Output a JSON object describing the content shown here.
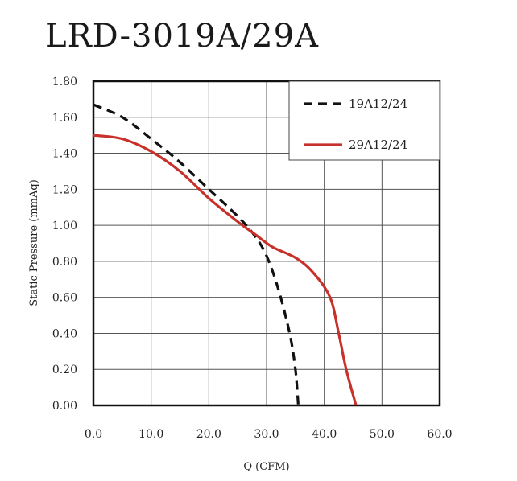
{
  "chart_data": {
    "type": "line",
    "title": "LRD-3019A/29A",
    "xlabel": "Q (CFM)",
    "ylabel": "Static Pressure (mmAq)",
    "xlim": [
      0,
      60
    ],
    "ylim": [
      0,
      1.8
    ],
    "x_ticks": [
      "0.0",
      "10.0",
      "20.0",
      "30.0",
      "40.0",
      "50.0",
      "60.0"
    ],
    "y_ticks": [
      "0.00",
      "0.20",
      "0.40",
      "0.60",
      "0.80",
      "1.00",
      "1.20",
      "1.40",
      "1.60",
      "1.80"
    ],
    "grid": true,
    "legend_position": "top-right",
    "series": [
      {
        "name": "19A12/24",
        "style": "dashed",
        "color": "#111111",
        "points": [
          [
            0,
            1.67
          ],
          [
            5,
            1.6
          ],
          [
            10,
            1.48
          ],
          [
            15,
            1.35
          ],
          [
            20,
            1.2
          ],
          [
            25,
            1.05
          ],
          [
            28,
            0.94
          ],
          [
            30,
            0.83
          ],
          [
            32,
            0.65
          ],
          [
            34,
            0.4
          ],
          [
            35,
            0.2
          ],
          [
            35.5,
            0.0
          ]
        ]
      },
      {
        "name": "29A12/24",
        "style": "solid",
        "color": "#c8302a",
        "points": [
          [
            0,
            1.5
          ],
          [
            5,
            1.48
          ],
          [
            10,
            1.41
          ],
          [
            15,
            1.3
          ],
          [
            20,
            1.15
          ],
          [
            25,
            1.02
          ],
          [
            28,
            0.95
          ],
          [
            31,
            0.88
          ],
          [
            35,
            0.82
          ],
          [
            38,
            0.74
          ],
          [
            41,
            0.6
          ],
          [
            42.5,
            0.4
          ],
          [
            43.8,
            0.2
          ],
          [
            45.5,
            0.0
          ]
        ]
      }
    ]
  }
}
